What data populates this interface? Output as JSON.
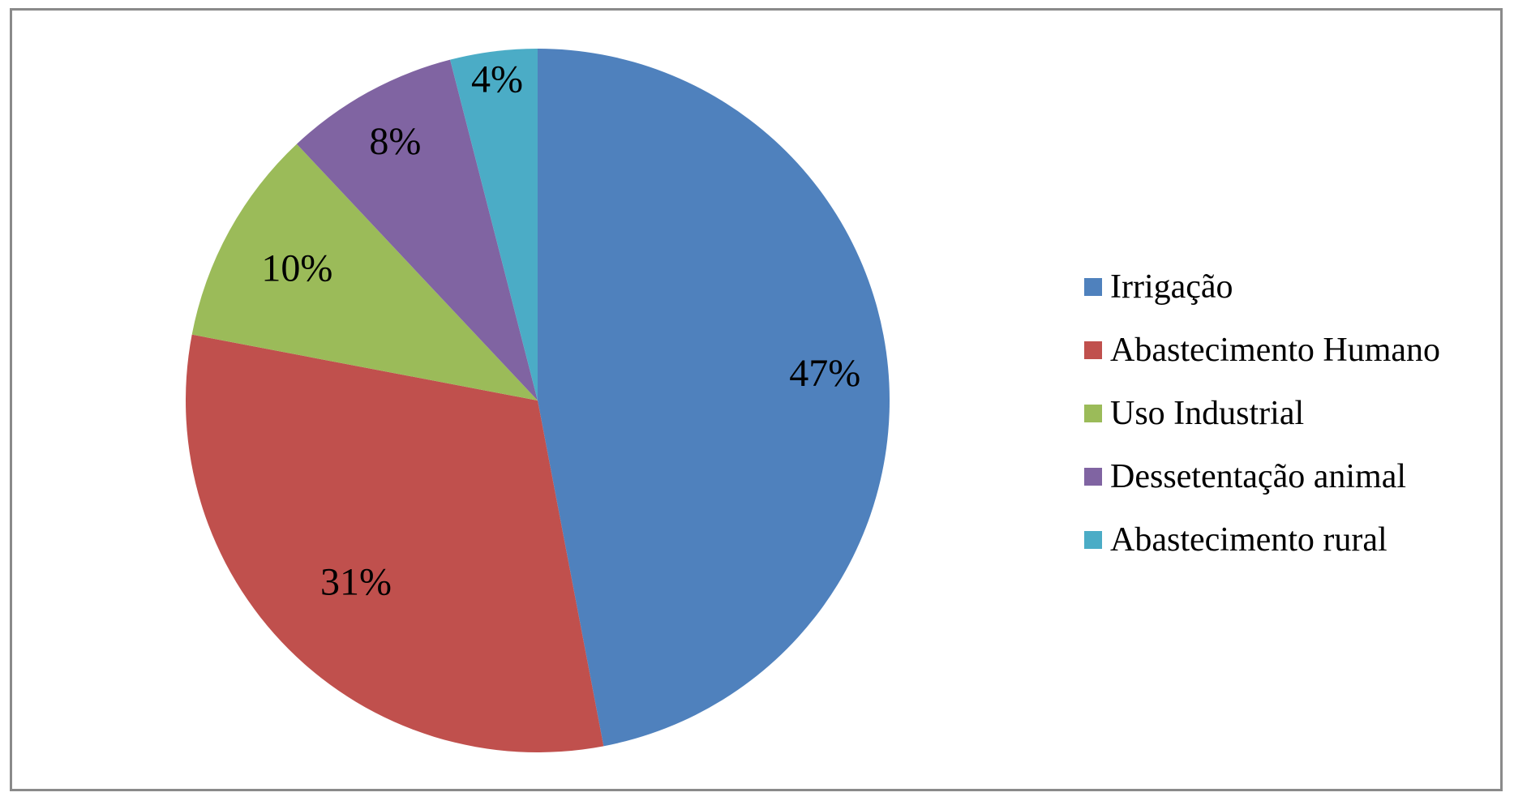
{
  "chart_data": {
    "type": "pie",
    "categories": [
      "Irrigação",
      "Abastecimento Humano",
      "Uso Industrial",
      "Dessetentação animal",
      "Abastecimento rural"
    ],
    "values": [
      47,
      31,
      10,
      8,
      4
    ],
    "data_labels": [
      "47%",
      "31%",
      "10%",
      "8%",
      "4%"
    ],
    "colors": [
      "#4f81bd",
      "#c0504d",
      "#9bbb59",
      "#8064a2",
      "#4bacc6"
    ],
    "start_angle_deg": 0,
    "direction": "clockwise",
    "legend_position": "right",
    "title": ""
  }
}
